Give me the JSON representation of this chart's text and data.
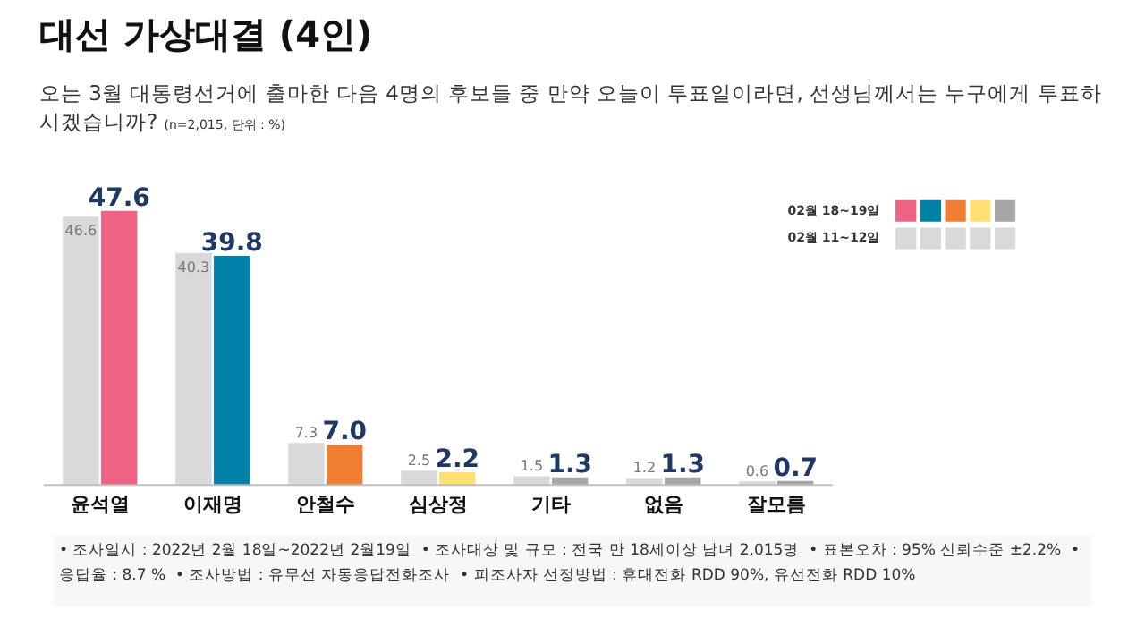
{
  "chart_data": {
    "type": "bar",
    "title": "대선 가상대결 (4인)",
    "subtitle": "오는 3월 대통령선거에 출마한 다음 4명의 후보들 중 만약 오늘이 투표일이라면, 선생님께서는 누구에게 투표하시겠습니까?",
    "annotations": [
      "(n=2,015, 단위 : %)",
      "• 조사일시 : 2022년 2월 18일~2022년 2월19일",
      "• 조사대상 및 규모 : 전국 만 18세이상 남녀 2,015명",
      "• 표본오차 : 95% 신뢰수준 ±2.2%",
      "• 응답율 : 8.7 %",
      "• 조사방법 : 유무선 자동응답전화조사",
      "• 피조사자 선정방법 : 휴대전화 RDD 90%, 유선전화 RDD 10%"
    ],
    "categories": [
      "윤석열",
      "이재명",
      "안철수",
      "심상정",
      "기타",
      "없음",
      "잘모름"
    ],
    "series": [
      {
        "name": "02월 11~12일",
        "color": "#d9d9d9",
        "values": [
          46.6,
          40.3,
          7.3,
          2.5,
          1.5,
          1.2,
          0.6
        ],
        "value_labels": [
          "46.6",
          "40.3",
          "7.3",
          "2.5",
          "1.5",
          "1.2",
          "0.6"
        ]
      },
      {
        "name": "02월 18~19일",
        "colors": [
          "#f06283",
          "#0081a7",
          "#ef7d32",
          "#ffdf71",
          "#a6a6a6",
          "#a6a6a6",
          "#a6a6a6"
        ],
        "values": [
          47.6,
          39.8,
          7.0,
          2.2,
          1.3,
          1.3,
          0.7
        ],
        "value_labels": [
          "47.6",
          "39.8",
          "7.0",
          "2.2",
          "1.3",
          "1.3",
          "0.7"
        ]
      }
    ],
    "legend": "top right",
    "grid": false
  }
}
